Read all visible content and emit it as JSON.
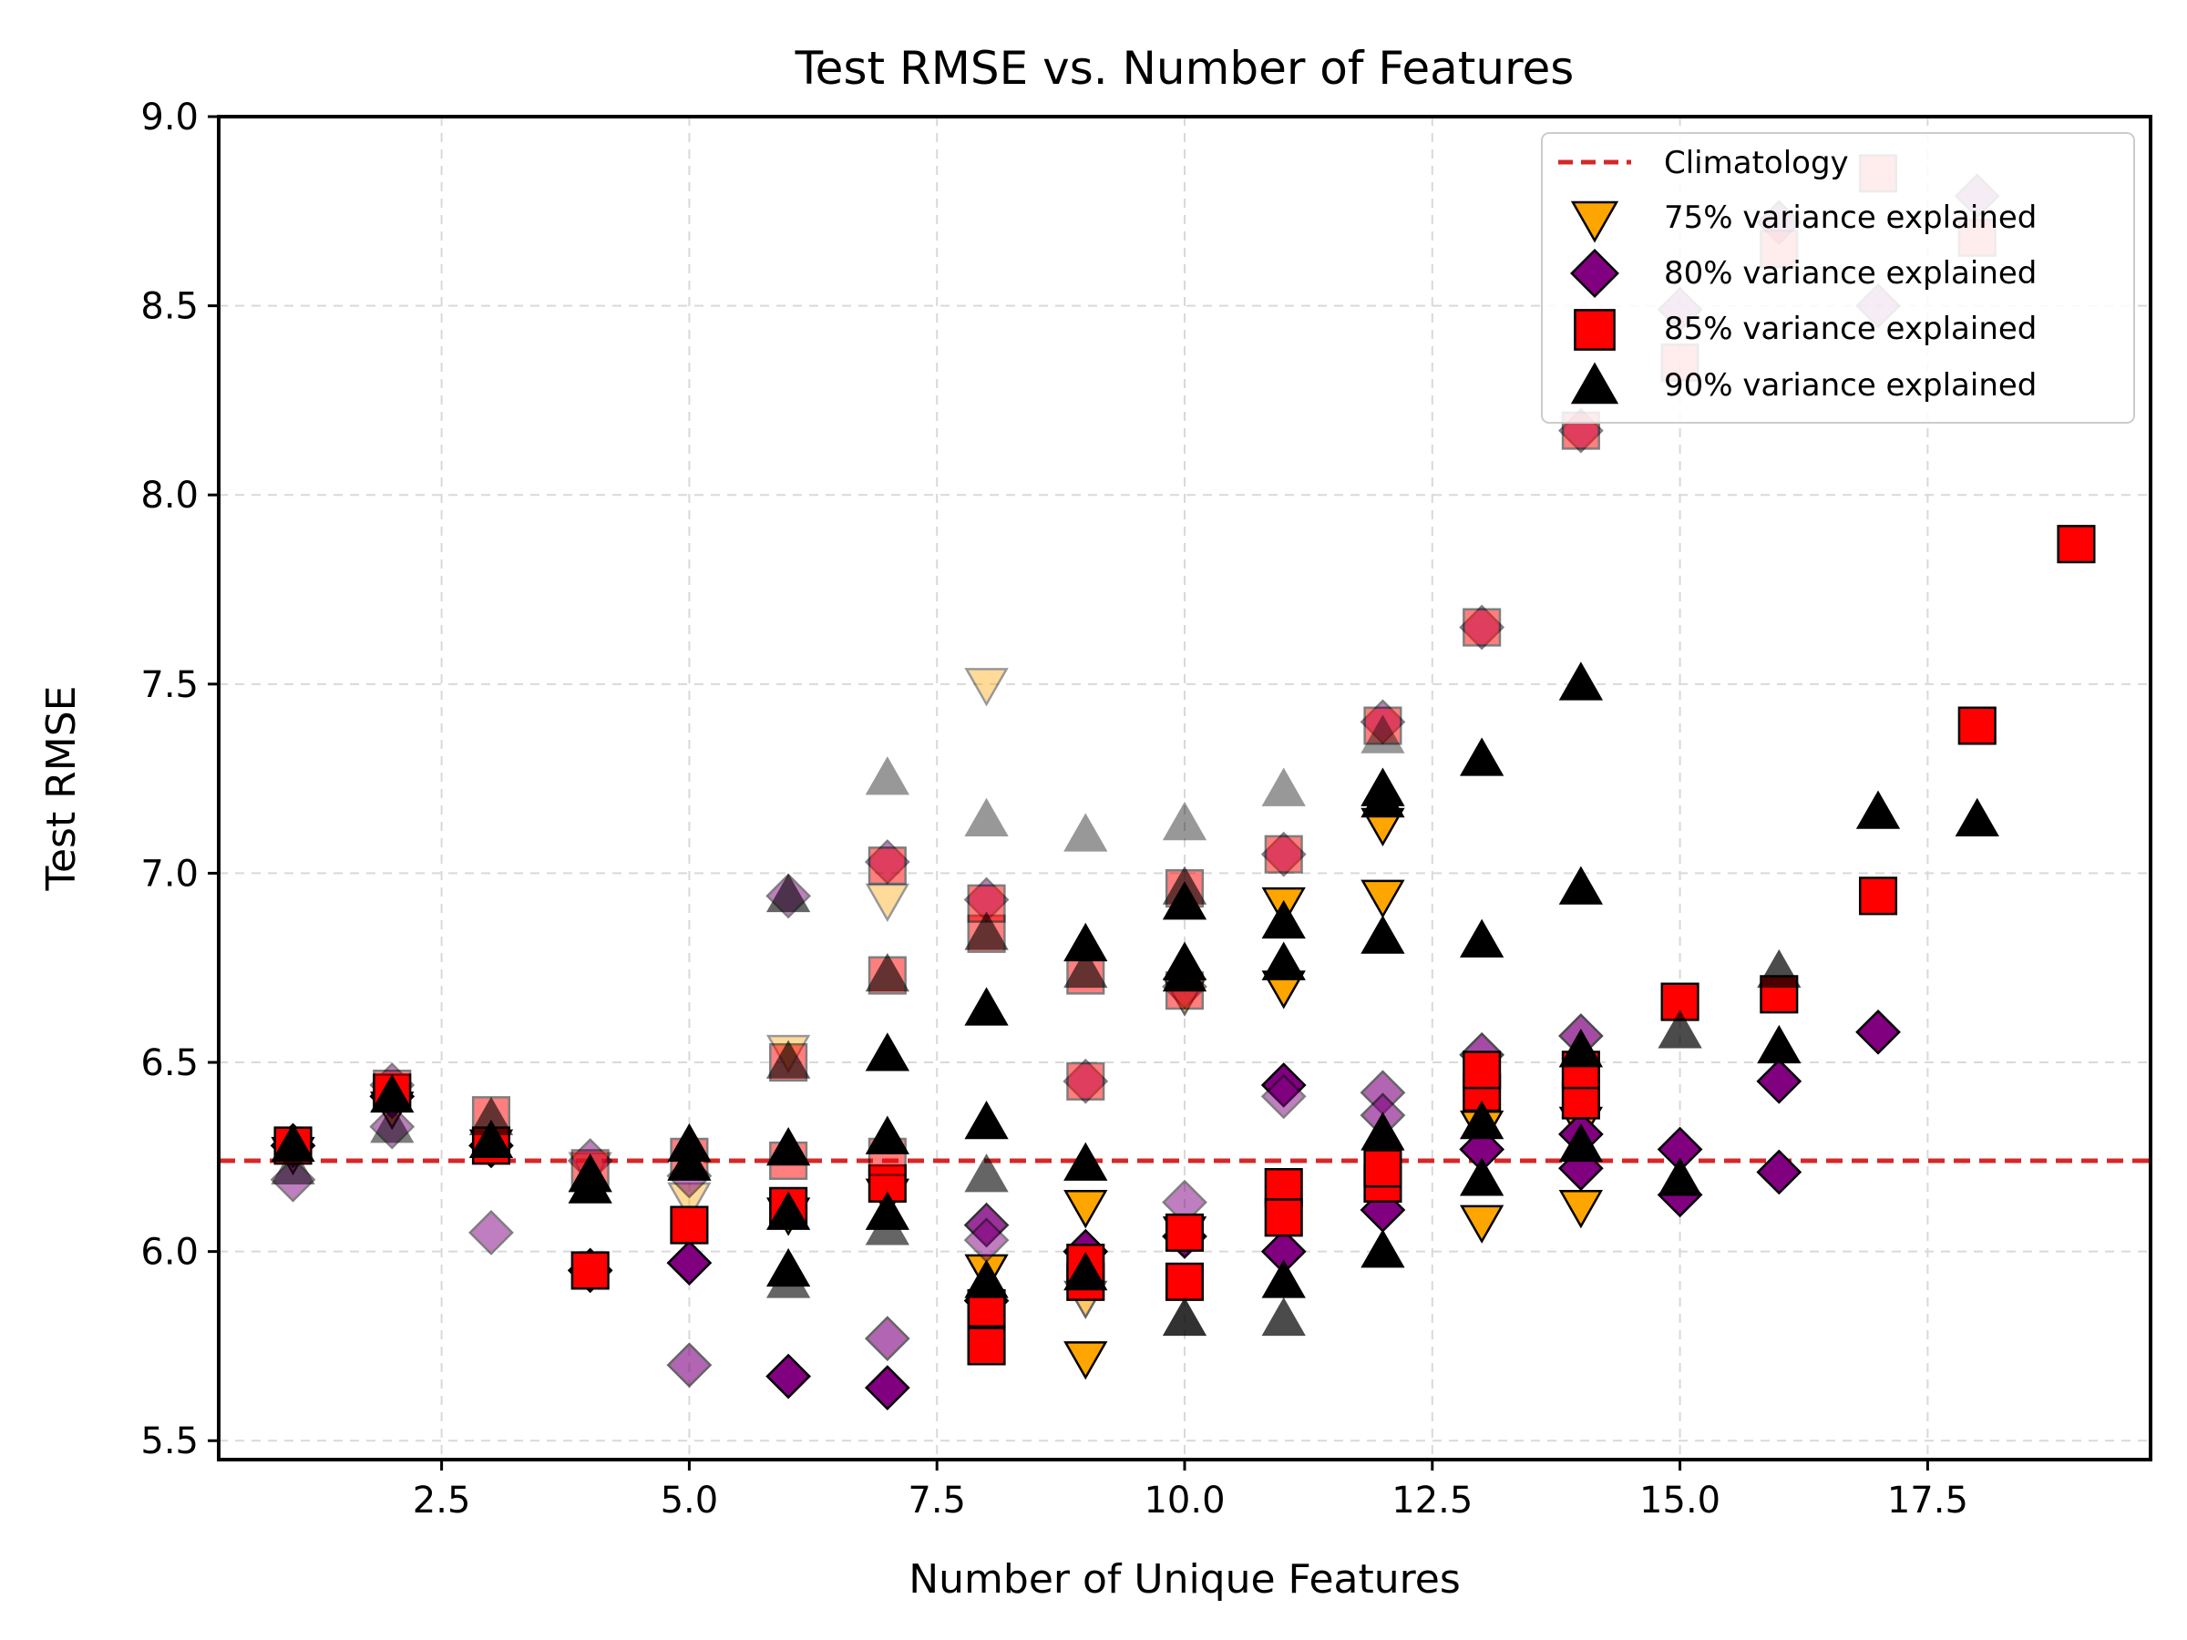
{
  "chart_data": {
    "type": "scatter",
    "title": "Test RMSE vs. Number of Features",
    "xlabel": "Number of Unique Features",
    "ylabel": "Test RMSE",
    "xlim": [
      0.25,
      19.75
    ],
    "ylim": [
      5.45,
      9.0
    ],
    "xticks": [
      2.5,
      5.0,
      7.5,
      10.0,
      12.5,
      15.0,
      17.5
    ],
    "xtick_labels": [
      "2.5",
      "5.0",
      "7.5",
      "10.0",
      "12.5",
      "15.0",
      "17.5"
    ],
    "yticks": [
      5.5,
      6.0,
      6.5,
      7.0,
      7.5,
      8.0,
      8.5,
      9.0
    ],
    "ytick_labels": [
      "5.5",
      "6.0",
      "6.5",
      "7.0",
      "7.5",
      "8.0",
      "8.5",
      "9.0"
    ],
    "grid": true,
    "legend_position": "top-right",
    "reference_line": {
      "label": "Climatology",
      "y": 6.24,
      "color": "#d62728",
      "style": "dashed"
    },
    "series": [
      {
        "name": "75% variance explained",
        "marker": "triangle-down",
        "color": "#ffa500",
        "points": [
          {
            "x": 1,
            "y": 6.26,
            "alpha": 1
          },
          {
            "x": 2,
            "y": 6.38,
            "alpha": 1
          },
          {
            "x": 3,
            "y": 6.28,
            "alpha": 1
          },
          {
            "x": 4,
            "y": 6.22,
            "alpha": 0.4
          },
          {
            "x": 5,
            "y": 6.14,
            "alpha": 0.4
          },
          {
            "x": 6,
            "y": 6.53,
            "alpha": 0.4
          },
          {
            "x": 6,
            "y": 6.1,
            "alpha": 1
          },
          {
            "x": 7,
            "y": 6.93,
            "alpha": 0.4
          },
          {
            "x": 7,
            "y": 6.15,
            "alpha": 1
          },
          {
            "x": 8,
            "y": 7.5,
            "alpha": 0.4
          },
          {
            "x": 8,
            "y": 5.95,
            "alpha": 1
          },
          {
            "x": 9,
            "y": 5.72,
            "alpha": 1
          },
          {
            "x": 9,
            "y": 6.12,
            "alpha": 1
          },
          {
            "x": 9,
            "y": 5.88,
            "alpha": 0.6
          },
          {
            "x": 10,
            "y": 6.68,
            "alpha": 0.6
          },
          {
            "x": 10,
            "y": 6.05,
            "alpha": 1
          },
          {
            "x": 11,
            "y": 6.92,
            "alpha": 1
          },
          {
            "x": 11,
            "y": 6.7,
            "alpha": 1
          },
          {
            "x": 12,
            "y": 7.13,
            "alpha": 1
          },
          {
            "x": 12,
            "y": 6.94,
            "alpha": 1
          },
          {
            "x": 13,
            "y": 6.08,
            "alpha": 1
          },
          {
            "x": 13,
            "y": 6.33,
            "alpha": 1
          },
          {
            "x": 14,
            "y": 6.12,
            "alpha": 1
          },
          {
            "x": 14,
            "y": 6.34,
            "alpha": 1
          }
        ]
      },
      {
        "name": "80% variance explained",
        "marker": "diamond",
        "color": "#800080",
        "points": [
          {
            "x": 1,
            "y": 6.28,
            "alpha": 1
          },
          {
            "x": 1,
            "y": 6.19,
            "alpha": 0.5
          },
          {
            "x": 2,
            "y": 6.41,
            "alpha": 1
          },
          {
            "x": 2,
            "y": 6.44,
            "alpha": 0.5
          },
          {
            "x": 2,
            "y": 6.33,
            "alpha": 0.5
          },
          {
            "x": 3,
            "y": 6.05,
            "alpha": 0.5
          },
          {
            "x": 3,
            "y": 6.28,
            "alpha": 1
          },
          {
            "x": 4,
            "y": 5.95,
            "alpha": 1
          },
          {
            "x": 4,
            "y": 6.24,
            "alpha": 0.5
          },
          {
            "x": 5,
            "y": 5.97,
            "alpha": 1
          },
          {
            "x": 5,
            "y": 5.7,
            "alpha": 0.6
          },
          {
            "x": 5,
            "y": 6.2,
            "alpha": 0.5
          },
          {
            "x": 6,
            "y": 5.67,
            "alpha": 1
          },
          {
            "x": 6,
            "y": 6.94,
            "alpha": 0.5
          },
          {
            "x": 7,
            "y": 5.64,
            "alpha": 1
          },
          {
            "x": 7,
            "y": 5.77,
            "alpha": 0.6
          },
          {
            "x": 7,
            "y": 7.03,
            "alpha": 0.5
          },
          {
            "x": 8,
            "y": 6.07,
            "alpha": 0.8
          },
          {
            "x": 8,
            "y": 6.03,
            "alpha": 0.5
          },
          {
            "x": 8,
            "y": 5.87,
            "alpha": 1
          },
          {
            "x": 8,
            "y": 6.93,
            "alpha": 0.5
          },
          {
            "x": 9,
            "y": 6.0,
            "alpha": 1
          },
          {
            "x": 9,
            "y": 6.45,
            "alpha": 0.5
          },
          {
            "x": 10,
            "y": 6.04,
            "alpha": 1
          },
          {
            "x": 10,
            "y": 6.13,
            "alpha": 0.5
          },
          {
            "x": 10,
            "y": 6.7,
            "alpha": 0.5
          },
          {
            "x": 11,
            "y": 6.44,
            "alpha": 1
          },
          {
            "x": 11,
            "y": 6.41,
            "alpha": 0.5
          },
          {
            "x": 11,
            "y": 6.0,
            "alpha": 1
          },
          {
            "x": 11,
            "y": 7.05,
            "alpha": 0.5
          },
          {
            "x": 12,
            "y": 6.42,
            "alpha": 0.6
          },
          {
            "x": 12,
            "y": 6.36,
            "alpha": 0.6
          },
          {
            "x": 12,
            "y": 6.11,
            "alpha": 1
          },
          {
            "x": 12,
            "y": 7.4,
            "alpha": 0.5
          },
          {
            "x": 13,
            "y": 6.52,
            "alpha": 0.7
          },
          {
            "x": 13,
            "y": 6.27,
            "alpha": 1
          },
          {
            "x": 13,
            "y": 7.65,
            "alpha": 0.5
          },
          {
            "x": 14,
            "y": 6.57,
            "alpha": 0.7
          },
          {
            "x": 14,
            "y": 6.31,
            "alpha": 1
          },
          {
            "x": 14,
            "y": 6.22,
            "alpha": 1
          },
          {
            "x": 14,
            "y": 8.17,
            "alpha": 0.5
          },
          {
            "x": 15,
            "y": 6.27,
            "alpha": 1
          },
          {
            "x": 15,
            "y": 6.15,
            "alpha": 1
          },
          {
            "x": 15,
            "y": 8.49,
            "alpha": 0.5
          },
          {
            "x": 16,
            "y": 6.45,
            "alpha": 1
          },
          {
            "x": 16,
            "y": 6.21,
            "alpha": 1
          },
          {
            "x": 16,
            "y": 8.72,
            "alpha": 0.5
          },
          {
            "x": 17,
            "y": 6.58,
            "alpha": 1
          },
          {
            "x": 17,
            "y": 8.5,
            "alpha": 0.5
          },
          {
            "x": 18,
            "y": 8.79,
            "alpha": 0.5
          }
        ]
      },
      {
        "name": "85% variance explained",
        "marker": "square",
        "color": "#ff0000",
        "points": [
          {
            "x": 1,
            "y": 6.28,
            "alpha": 1
          },
          {
            "x": 2,
            "y": 6.42,
            "alpha": 1
          },
          {
            "x": 2,
            "y": 6.43,
            "alpha": 0.5
          },
          {
            "x": 3,
            "y": 6.36,
            "alpha": 0.5
          },
          {
            "x": 3,
            "y": 6.28,
            "alpha": 1
          },
          {
            "x": 4,
            "y": 5.95,
            "alpha": 1
          },
          {
            "x": 4,
            "y": 6.22,
            "alpha": 0.5
          },
          {
            "x": 5,
            "y": 6.07,
            "alpha": 1
          },
          {
            "x": 5,
            "y": 6.25,
            "alpha": 0.5
          },
          {
            "x": 6,
            "y": 6.12,
            "alpha": 1
          },
          {
            "x": 6,
            "y": 6.24,
            "alpha": 0.5
          },
          {
            "x": 6,
            "y": 6.5,
            "alpha": 0.5
          },
          {
            "x": 7,
            "y": 6.18,
            "alpha": 1
          },
          {
            "x": 7,
            "y": 6.25,
            "alpha": 0.5
          },
          {
            "x": 7,
            "y": 6.73,
            "alpha": 0.5
          },
          {
            "x": 7,
            "y": 7.02,
            "alpha": 0.5
          },
          {
            "x": 8,
            "y": 5.75,
            "alpha": 1
          },
          {
            "x": 8,
            "y": 5.85,
            "alpha": 1
          },
          {
            "x": 8,
            "y": 6.84,
            "alpha": 0.5
          },
          {
            "x": 8,
            "y": 6.92,
            "alpha": 0.5
          },
          {
            "x": 9,
            "y": 5.92,
            "alpha": 1
          },
          {
            "x": 9,
            "y": 5.97,
            "alpha": 1
          },
          {
            "x": 9,
            "y": 6.73,
            "alpha": 0.5
          },
          {
            "x": 9,
            "y": 6.45,
            "alpha": 0.5
          },
          {
            "x": 10,
            "y": 5.92,
            "alpha": 1
          },
          {
            "x": 10,
            "y": 6.05,
            "alpha": 1
          },
          {
            "x": 10,
            "y": 6.96,
            "alpha": 0.5
          },
          {
            "x": 10,
            "y": 6.69,
            "alpha": 0.5
          },
          {
            "x": 11,
            "y": 6.17,
            "alpha": 1
          },
          {
            "x": 11,
            "y": 6.09,
            "alpha": 1
          },
          {
            "x": 11,
            "y": 7.05,
            "alpha": 0.5
          },
          {
            "x": 12,
            "y": 6.18,
            "alpha": 1
          },
          {
            "x": 12,
            "y": 6.22,
            "alpha": 1
          },
          {
            "x": 12,
            "y": 7.39,
            "alpha": 0.5
          },
          {
            "x": 13,
            "y": 6.42,
            "alpha": 1
          },
          {
            "x": 13,
            "y": 6.48,
            "alpha": 1
          },
          {
            "x": 13,
            "y": 7.65,
            "alpha": 0.5
          },
          {
            "x": 14,
            "y": 6.4,
            "alpha": 1
          },
          {
            "x": 14,
            "y": 6.48,
            "alpha": 1
          },
          {
            "x": 14,
            "y": 8.17,
            "alpha": 0.5
          },
          {
            "x": 15,
            "y": 6.66,
            "alpha": 1
          },
          {
            "x": 15,
            "y": 8.35,
            "alpha": 0.5
          },
          {
            "x": 16,
            "y": 6.68,
            "alpha": 1
          },
          {
            "x": 16,
            "y": 8.65,
            "alpha": 0.5
          },
          {
            "x": 17,
            "y": 6.94,
            "alpha": 1
          },
          {
            "x": 17,
            "y": 8.85,
            "alpha": 0.5
          },
          {
            "x": 18,
            "y": 7.39,
            "alpha": 1
          },
          {
            "x": 18,
            "y": 8.68,
            "alpha": 0.5
          },
          {
            "x": 19,
            "y": 7.87,
            "alpha": 1
          }
        ]
      },
      {
        "name": "90% variance explained",
        "marker": "triangle-up",
        "color": "#000000",
        "points": [
          {
            "x": 1,
            "y": 6.28,
            "alpha": 1
          },
          {
            "x": 1,
            "y": 6.22,
            "alpha": 0.5
          },
          {
            "x": 2,
            "y": 6.41,
            "alpha": 1
          },
          {
            "x": 2,
            "y": 6.33,
            "alpha": 0.5
          },
          {
            "x": 3,
            "y": 6.35,
            "alpha": 0.6
          },
          {
            "x": 3,
            "y": 6.29,
            "alpha": 1
          },
          {
            "x": 4,
            "y": 6.2,
            "alpha": 1
          },
          {
            "x": 4,
            "y": 6.17,
            "alpha": 1
          },
          {
            "x": 5,
            "y": 6.28,
            "alpha": 1
          },
          {
            "x": 5,
            "y": 6.23,
            "alpha": 1
          },
          {
            "x": 6,
            "y": 6.27,
            "alpha": 1
          },
          {
            "x": 6,
            "y": 6.1,
            "alpha": 1
          },
          {
            "x": 6,
            "y": 5.95,
            "alpha": 1
          },
          {
            "x": 6,
            "y": 5.92,
            "alpha": 0.6
          },
          {
            "x": 6,
            "y": 6.94,
            "alpha": 0.6
          },
          {
            "x": 6,
            "y": 6.5,
            "alpha": 0.6
          },
          {
            "x": 7,
            "y": 6.52,
            "alpha": 1
          },
          {
            "x": 7,
            "y": 6.3,
            "alpha": 1
          },
          {
            "x": 7,
            "y": 6.1,
            "alpha": 1
          },
          {
            "x": 7,
            "y": 6.06,
            "alpha": 0.6
          },
          {
            "x": 7,
            "y": 7.25,
            "alpha": 0.4
          },
          {
            "x": 7,
            "y": 6.73,
            "alpha": 0.6
          },
          {
            "x": 8,
            "y": 6.64,
            "alpha": 1
          },
          {
            "x": 8,
            "y": 6.34,
            "alpha": 1
          },
          {
            "x": 8,
            "y": 6.2,
            "alpha": 0.6
          },
          {
            "x": 8,
            "y": 5.92,
            "alpha": 1
          },
          {
            "x": 8,
            "y": 7.14,
            "alpha": 0.4
          },
          {
            "x": 8,
            "y": 6.84,
            "alpha": 0.6
          },
          {
            "x": 9,
            "y": 6.81,
            "alpha": 1
          },
          {
            "x": 9,
            "y": 6.23,
            "alpha": 1
          },
          {
            "x": 9,
            "y": 5.94,
            "alpha": 1
          },
          {
            "x": 9,
            "y": 7.1,
            "alpha": 0.4
          },
          {
            "x": 9,
            "y": 6.74,
            "alpha": 0.6
          },
          {
            "x": 10,
            "y": 6.92,
            "alpha": 1
          },
          {
            "x": 10,
            "y": 6.76,
            "alpha": 1
          },
          {
            "x": 10,
            "y": 6.73,
            "alpha": 1
          },
          {
            "x": 10,
            "y": 5.82,
            "alpha": 0.8
          },
          {
            "x": 10,
            "y": 7.13,
            "alpha": 0.4
          },
          {
            "x": 10,
            "y": 6.96,
            "alpha": 0.6
          },
          {
            "x": 11,
            "y": 6.87,
            "alpha": 1
          },
          {
            "x": 11,
            "y": 6.76,
            "alpha": 1
          },
          {
            "x": 11,
            "y": 5.92,
            "alpha": 1
          },
          {
            "x": 11,
            "y": 5.82,
            "alpha": 0.7
          },
          {
            "x": 11,
            "y": 7.22,
            "alpha": 0.4
          },
          {
            "x": 12,
            "y": 7.22,
            "alpha": 1
          },
          {
            "x": 12,
            "y": 7.19,
            "alpha": 1
          },
          {
            "x": 12,
            "y": 6.83,
            "alpha": 1
          },
          {
            "x": 12,
            "y": 6.31,
            "alpha": 1
          },
          {
            "x": 12,
            "y": 6.0,
            "alpha": 1
          },
          {
            "x": 12,
            "y": 7.36,
            "alpha": 0.4
          },
          {
            "x": 13,
            "y": 7.3,
            "alpha": 1
          },
          {
            "x": 13,
            "y": 6.82,
            "alpha": 1
          },
          {
            "x": 13,
            "y": 6.34,
            "alpha": 1
          },
          {
            "x": 13,
            "y": 6.19,
            "alpha": 1
          },
          {
            "x": 14,
            "y": 7.5,
            "alpha": 1
          },
          {
            "x": 14,
            "y": 6.96,
            "alpha": 1
          },
          {
            "x": 14,
            "y": 6.53,
            "alpha": 1
          },
          {
            "x": 14,
            "y": 6.28,
            "alpha": 1
          },
          {
            "x": 15,
            "y": 6.58,
            "alpha": 0.7
          },
          {
            "x": 15,
            "y": 6.19,
            "alpha": 1
          },
          {
            "x": 16,
            "y": 6.74,
            "alpha": 0.7
          },
          {
            "x": 16,
            "y": 6.54,
            "alpha": 1
          },
          {
            "x": 17,
            "y": 7.16,
            "alpha": 1
          },
          {
            "x": 18,
            "y": 7.14,
            "alpha": 1
          }
        ]
      }
    ]
  }
}
